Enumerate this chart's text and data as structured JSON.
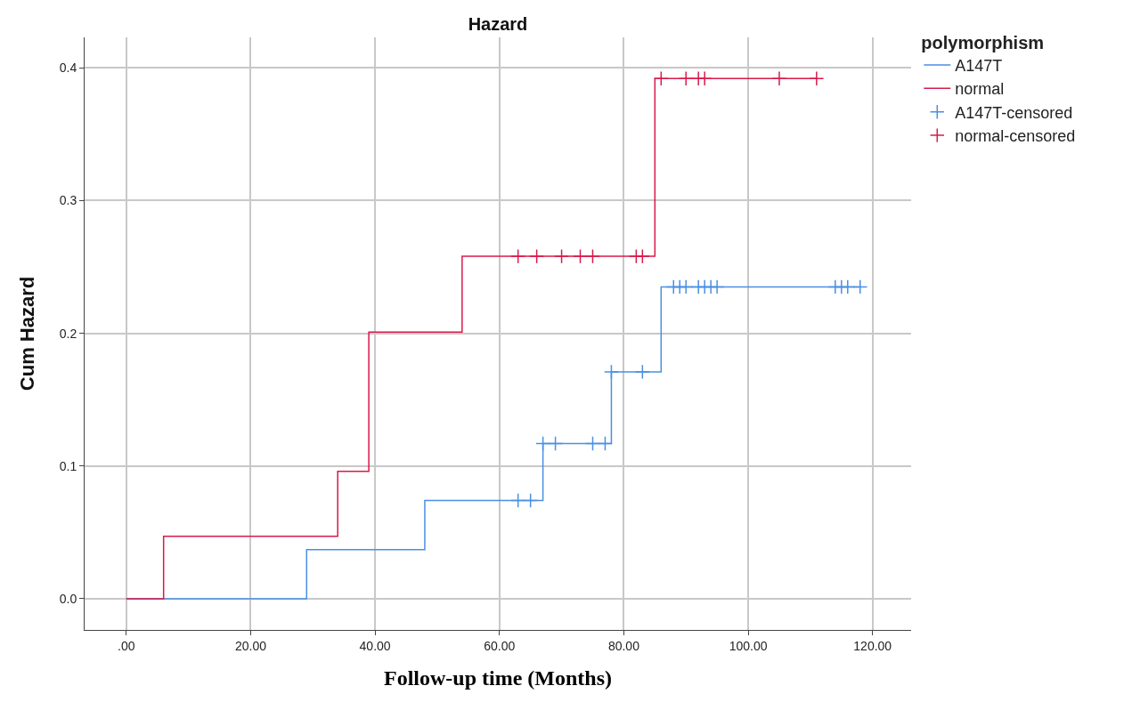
{
  "chart_data": {
    "type": "step",
    "title": "Hazard",
    "xlabel": "Follow-up time (Months)",
    "ylabel": "Cum Hazard",
    "legend_title": "polymorphism",
    "xlim": [
      -6.7,
      126.2
    ],
    "xticks": [
      {
        "value": 0,
        "label": ".00"
      },
      {
        "value": 20,
        "label": "20.00"
      },
      {
        "value": 40,
        "label": "40.00"
      },
      {
        "value": 60,
        "label": "60.00"
      },
      {
        "value": 80,
        "label": "80.00"
      },
      {
        "value": 100,
        "label": "100.00"
      },
      {
        "value": 120,
        "label": "120.00"
      }
    ],
    "ylim": [
      -0.0235,
      0.423
    ],
    "yticks": [
      {
        "value": 0,
        "label": "0.0"
      },
      {
        "value": 0.1,
        "label": "0.1"
      },
      {
        "value": 0.2,
        "label": "0.2"
      },
      {
        "value": 0.3,
        "label": "0.3"
      },
      {
        "value": 0.4,
        "label": "0.4"
      }
    ],
    "grid": true,
    "legend": "top right",
    "series": [
      {
        "name": "A147T",
        "color": "#4a90e2",
        "marker": "none",
        "x": [
          0,
          29,
          48,
          67,
          78,
          86,
          118
        ],
        "values": [
          0,
          0.037,
          0.074,
          0.117,
          0.171,
          0.235,
          0.235
        ]
      },
      {
        "name": "normal",
        "color": "#d81b4a",
        "marker": "none",
        "x": [
          0,
          6,
          34,
          39,
          54,
          85,
          111
        ],
        "values": [
          0,
          0.047,
          0.096,
          0.201,
          0.258,
          0.392,
          0.392
        ]
      },
      {
        "name": "A147T-censored",
        "type": "scatter",
        "color": "#4a90e2",
        "marker": "cross",
        "x": [
          63,
          65,
          67,
          69,
          75,
          77,
          78,
          83,
          88,
          89,
          90,
          92,
          93,
          94,
          95,
          114,
          115,
          116,
          118
        ],
        "values": [
          0.074,
          0.074,
          0.117,
          0.117,
          0.117,
          0.117,
          0.171,
          0.171,
          0.235,
          0.235,
          0.235,
          0.235,
          0.235,
          0.235,
          0.235,
          0.235,
          0.235,
          0.235,
          0.235
        ]
      },
      {
        "name": "normal-censored",
        "type": "scatter",
        "color": "#d81b4a",
        "marker": "cross",
        "x": [
          63,
          66,
          70,
          73,
          75,
          82,
          83,
          86,
          90,
          92,
          93,
          105,
          111
        ],
        "values": [
          0.258,
          0.258,
          0.258,
          0.258,
          0.258,
          0.258,
          0.258,
          0.392,
          0.392,
          0.392,
          0.392,
          0.392,
          0.392
        ]
      }
    ]
  }
}
